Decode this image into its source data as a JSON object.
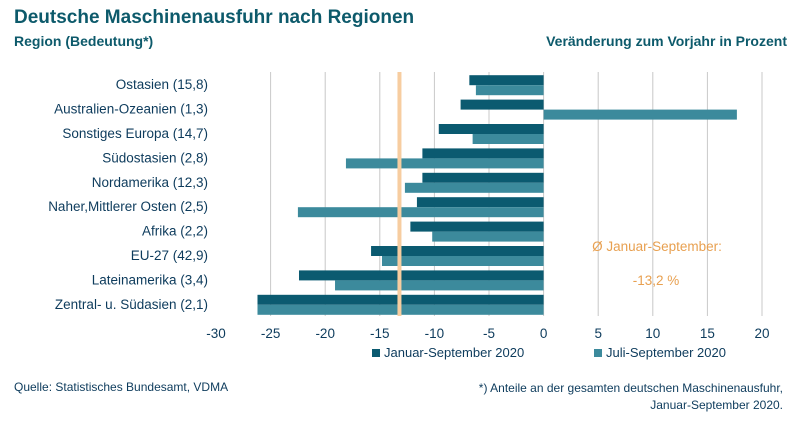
{
  "chart_data": {
    "type": "bar",
    "orientation": "horizontal",
    "title": "Deutsche Maschinenausfuhr nach Regionen",
    "ylabel": "Region (Bedeutung*)",
    "xlabel": "Veränderung zum Vorjahr in Prozent",
    "categories": [
      "Ostasien (15,8)",
      "Australien-Ozeanien (1,3)",
      "Sonstiges Europa (14,7)",
      "Südostasien (2,8)",
      "Nordamerika (12,3)",
      "Naher,Mittlerer Osten (2,5)",
      "Afrika (2,2)",
      "EU-27 (42,9)",
      "Lateinamerika (3,4)",
      "Zentral- u. Südasien (2,1)"
    ],
    "series": [
      {
        "name": "Januar-September 2020",
        "color": "#0b5a70",
        "values": [
          -6.8,
          -7.6,
          -9.6,
          -11.1,
          -11.1,
          -11.6,
          -12.2,
          -15.8,
          -22.4,
          -26.2
        ]
      },
      {
        "name": "Juli-September 2020",
        "color": "#3c8a9c",
        "values": [
          -6.2,
          17.7,
          -6.5,
          -18.1,
          -12.7,
          -22.5,
          -10.2,
          -14.8,
          -19.1,
          -26.2
        ]
      }
    ],
    "xlim": [
      -30,
      20
    ],
    "xticks": [
      "-30",
      "-25",
      "-20",
      "-15",
      "-10",
      "-5",
      "0",
      "5",
      "10",
      "15",
      "20"
    ],
    "xtick_values": [
      -30,
      -25,
      -20,
      -15,
      -10,
      -5,
      0,
      5,
      10,
      15,
      20
    ],
    "grid": true,
    "legend_position": "bottom",
    "reference_line": {
      "value": -13.2,
      "color": "#f7cda0"
    },
    "annotation": {
      "label": "Ø Januar-September:",
      "value": "-13,2 %",
      "color": "#e8a050"
    }
  },
  "footer": {
    "source": "Quelle: Statistisches Bundesamt, VDMA",
    "note_line1": "*) Anteile an der gesamten deutschen Maschinenausfuhr,",
    "note_line2": "Januar-September 2020."
  }
}
